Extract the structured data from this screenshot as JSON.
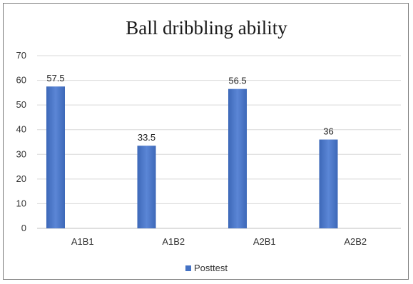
{
  "chart_data": {
    "type": "bar",
    "title": "Ball dribbling ability",
    "categories": [
      "A1B1",
      "A1B2",
      "A2B1",
      "A2B2"
    ],
    "series": [
      {
        "name": "Posttest",
        "values": [
          57.5,
          33.5,
          56.5,
          36
        ]
      }
    ],
    "data_labels": [
      "57.5",
      "33.5",
      "56.5",
      "36"
    ],
    "ylim": [
      0,
      70
    ],
    "yticks": [
      0,
      10,
      20,
      30,
      40,
      50,
      60,
      70
    ],
    "grid": true,
    "legend_position": "bottom",
    "bar_color": "#4472c4"
  }
}
